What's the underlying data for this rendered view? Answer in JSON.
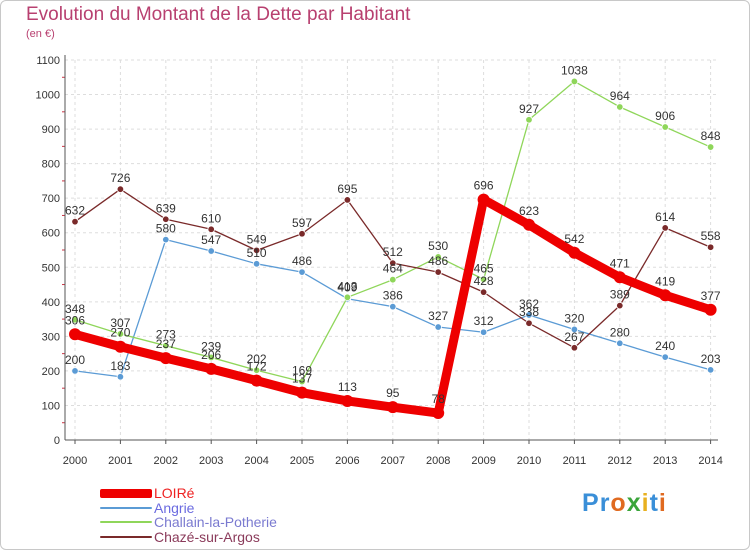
{
  "title": "Evolution du Montant de la Dette par Habitant",
  "subtitle": "(en €)",
  "logo": {
    "text": "Proxiti",
    "letter_colors": [
      "#3a8fd8",
      "#3a8fd8",
      "#e06a20",
      "#3aa53a",
      "#e8b020",
      "#3a8fd8",
      "#e06a20"
    ]
  },
  "chart_data": {
    "type": "line",
    "title": "Evolution du Montant de la Dette par Habitant",
    "ylabel": "(en €)",
    "x": [
      "2000",
      "2001",
      "2002",
      "2003",
      "2004",
      "2005",
      "2006",
      "2007",
      "2008",
      "2009",
      "2010",
      "2011",
      "2012",
      "2013",
      "2014"
    ],
    "ylim": [
      0,
      1100
    ],
    "yticks": [
      0,
      100,
      200,
      300,
      400,
      500,
      600,
      700,
      800,
      900,
      1000,
      1100
    ],
    "grid": true,
    "legend": "bottom-left",
    "series": [
      {
        "name": "Angrie",
        "color": "#5b9bd5",
        "values": [
          200,
          183,
          580,
          547,
          510,
          486,
          409,
          386,
          327,
          312,
          362,
          320,
          280,
          240,
          203
        ]
      },
      {
        "name": "Challain-la-Potherie",
        "color": "#8fd65a",
        "values": [
          348,
          307,
          273,
          239,
          202,
          169,
          413,
          464,
          530,
          465,
          927,
          1038,
          964,
          906,
          848
        ]
      },
      {
        "name": "Chazé-sur-Argos",
        "color": "#7a2a2a",
        "values": [
          632,
          726,
          639,
          610,
          549,
          597,
          695,
          512,
          486,
          428,
          338,
          267,
          389,
          614,
          558
        ]
      },
      {
        "name": "LOIRé",
        "color": "#ee0000",
        "values": [
          306,
          270,
          237,
          206,
          172,
          137,
          113,
          95,
          78,
          696,
          623,
          542,
          471,
          419,
          377
        ]
      }
    ],
    "legend_order": [
      "LOIRé",
      "Angrie",
      "Challain-la-Potherie",
      "Chazé-sur-Argos"
    ]
  }
}
